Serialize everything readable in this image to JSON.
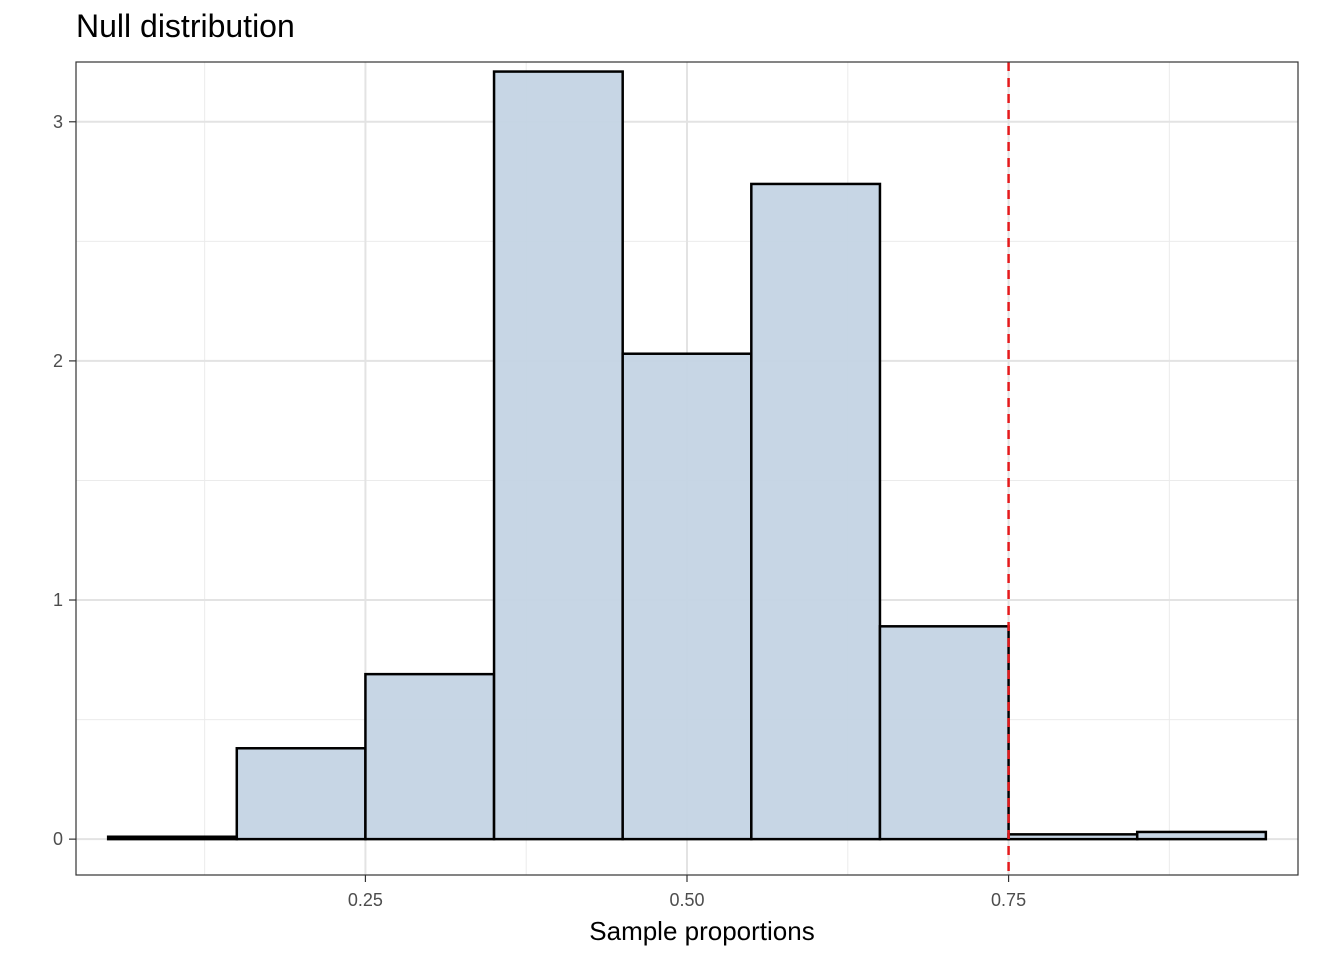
{
  "chart_data": {
    "type": "bar",
    "title": "Null distribution",
    "xlabel": "Sample proportions",
    "ylabel": "",
    "xlim": [
      0.025,
      0.975
    ],
    "ylim": [
      -0.15,
      3.25
    ],
    "x_ticks": [
      0.25,
      0.5,
      0.75
    ],
    "x_tick_labels": [
      "0.25",
      "0.50",
      "0.75"
    ],
    "y_ticks": [
      0,
      1,
      2,
      3
    ],
    "y_tick_labels": [
      "0",
      "1",
      "2",
      "3"
    ],
    "grid": true,
    "bins": [
      {
        "x0": 0.05,
        "x1": 0.15,
        "value": 0.01
      },
      {
        "x0": 0.15,
        "x1": 0.25,
        "value": 0.38
      },
      {
        "x0": 0.25,
        "x1": 0.35,
        "value": 0.69
      },
      {
        "x0": 0.35,
        "x1": 0.45,
        "value": 3.21
      },
      {
        "x0": 0.45,
        "x1": 0.55,
        "value": 2.03
      },
      {
        "x0": 0.55,
        "x1": 0.65,
        "value": 2.74
      },
      {
        "x0": 0.65,
        "x1": 0.75,
        "value": 0.89
      },
      {
        "x0": 0.75,
        "x1": 0.85,
        "value": 0.02
      },
      {
        "x0": 0.85,
        "x1": 0.95,
        "value": 0.03
      }
    ],
    "reference_line": {
      "x": 0.75,
      "style": "dashed",
      "color": "#e41a1c"
    },
    "bar_fill": "#c4d4e4",
    "bar_stroke": "#000000"
  }
}
